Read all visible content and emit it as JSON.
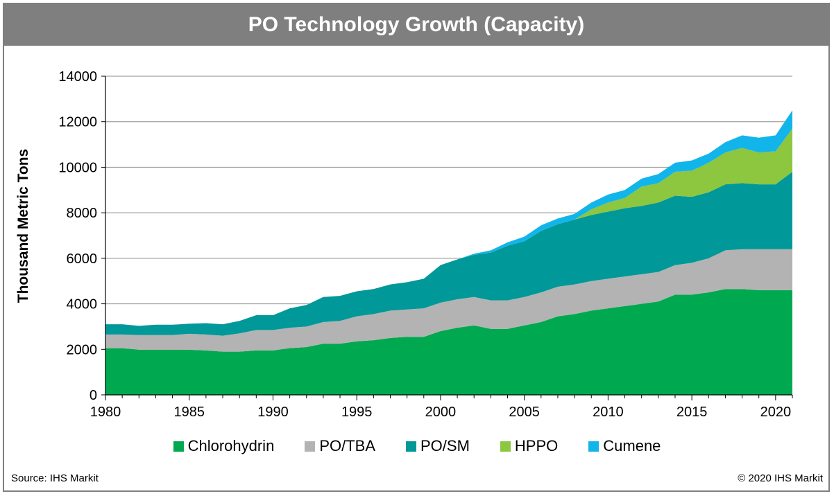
{
  "header": {
    "title": "PO Technology Growth (Capacity)"
  },
  "footer": {
    "source": "Source: IHS Markit",
    "copyright": "© 2020 IHS Markit"
  },
  "chart_data": {
    "type": "area",
    "stacked": true,
    "title": "PO Technology Growth (Capacity)",
    "xlabel": "",
    "ylabel": "Thousand Metric Tons",
    "xlim": [
      1980,
      2021
    ],
    "ylim": [
      0,
      14000
    ],
    "x_ticks": [
      1980,
      1985,
      1990,
      1995,
      2000,
      2005,
      2010,
      2015,
      2020
    ],
    "y_ticks": [
      0,
      2000,
      4000,
      6000,
      8000,
      10000,
      12000,
      14000
    ],
    "grid": "horizontal",
    "legend_position": "bottom",
    "x": [
      1980,
      1981,
      1982,
      1983,
      1984,
      1985,
      1986,
      1987,
      1988,
      1989,
      1990,
      1991,
      1992,
      1993,
      1994,
      1995,
      1996,
      1997,
      1998,
      1999,
      2000,
      2001,
      2002,
      2003,
      2004,
      2005,
      2006,
      2007,
      2008,
      2009,
      2010,
      2011,
      2012,
      2013,
      2014,
      2015,
      2016,
      2017,
      2018,
      2019,
      2020,
      2021
    ],
    "series": [
      {
        "name": "Chlorohydrin",
        "color": "#00a84f",
        "values": [
          2050,
          2050,
          1980,
          1980,
          1980,
          1980,
          1950,
          1900,
          1900,
          1950,
          1950,
          2050,
          2100,
          2250,
          2250,
          2350,
          2400,
          2500,
          2550,
          2550,
          2800,
          2950,
          3050,
          2900,
          2900,
          3050,
          3200,
          3450,
          3550,
          3700,
          3800,
          3900,
          4000,
          4100,
          4400,
          4400,
          4500,
          4650,
          4650,
          4600,
          4600,
          4600
        ]
      },
      {
        "name": "PO/TBA",
        "color": "#b3b3b3",
        "values": [
          600,
          600,
          650,
          650,
          650,
          700,
          700,
          700,
          800,
          900,
          900,
          900,
          900,
          950,
          1000,
          1100,
          1150,
          1200,
          1200,
          1250,
          1250,
          1250,
          1250,
          1250,
          1250,
          1250,
          1300,
          1300,
          1300,
          1300,
          1300,
          1300,
          1300,
          1300,
          1300,
          1400,
          1500,
          1700,
          1750,
          1800,
          1800,
          1800
        ]
      },
      {
        "name": "PO/SM",
        "color": "#009898",
        "values": [
          450,
          450,
          400,
          450,
          450,
          450,
          500,
          500,
          550,
          650,
          650,
          850,
          950,
          1100,
          1100,
          1100,
          1100,
          1150,
          1200,
          1300,
          1650,
          1750,
          1850,
          2100,
          2400,
          2450,
          2700,
          2750,
          2850,
          2900,
          2950,
          3000,
          3000,
          3050,
          3050,
          2900,
          2900,
          2900,
          2900,
          2850,
          2850,
          3400
        ]
      },
      {
        "name": "HPPO",
        "color": "#8dc63f",
        "values": [
          0,
          0,
          0,
          0,
          0,
          0,
          0,
          0,
          0,
          0,
          0,
          0,
          0,
          0,
          0,
          0,
          0,
          0,
          0,
          0,
          0,
          0,
          0,
          0,
          0,
          0,
          0,
          0,
          0,
          250,
          400,
          450,
          850,
          850,
          1050,
          1150,
          1300,
          1400,
          1550,
          1400,
          1450,
          1900
        ]
      },
      {
        "name": "Cumene",
        "color": "#12b5ea",
        "values": [
          0,
          0,
          0,
          0,
          0,
          0,
          0,
          0,
          0,
          0,
          0,
          0,
          0,
          0,
          0,
          0,
          0,
          0,
          0,
          0,
          0,
          0,
          50,
          100,
          150,
          200,
          250,
          250,
          250,
          300,
          350,
          350,
          350,
          400,
          400,
          450,
          400,
          450,
          550,
          650,
          700,
          800
        ]
      }
    ]
  }
}
